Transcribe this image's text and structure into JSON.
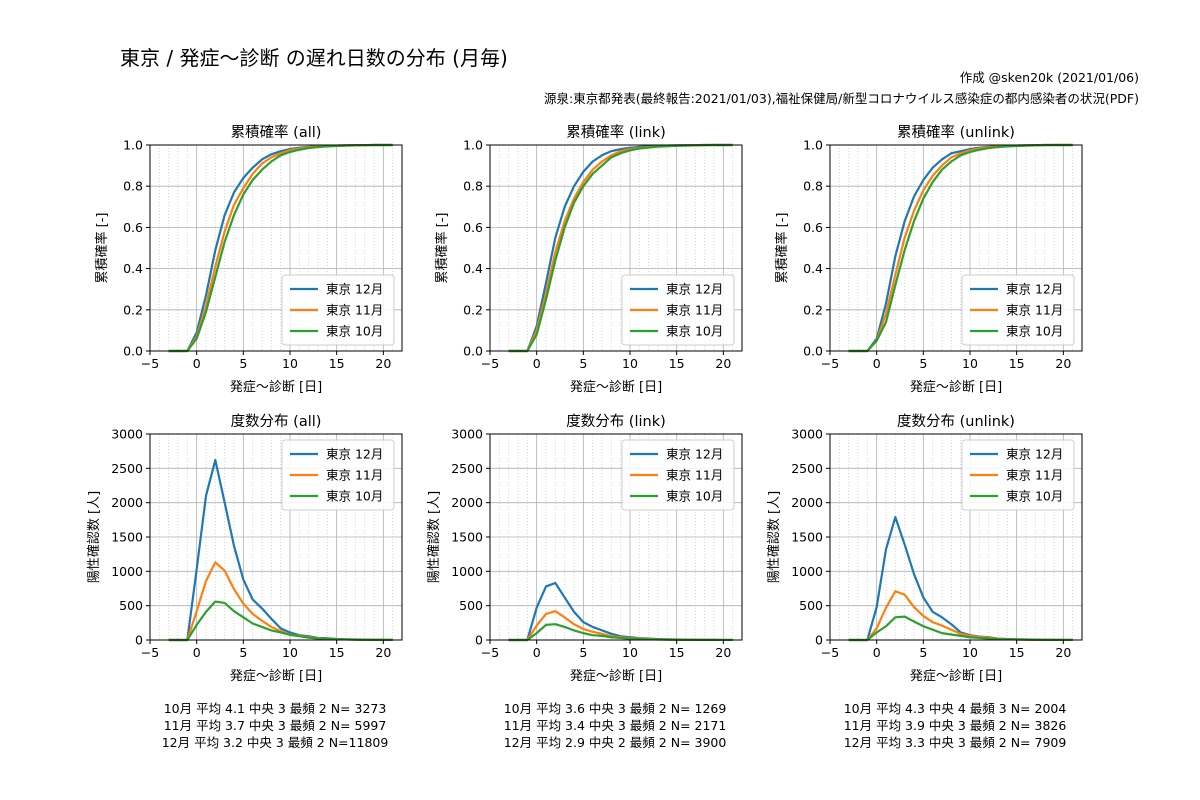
{
  "header": {
    "title": "東京 / 発症～診断 の遅れ日数の分布 (月毎)",
    "credit": "作成 @sken20k (2021/01/06)",
    "source": "源泉:東京都発表(最終報告:2021/01/03),福祉保健局/新型コロナウイルス感染症の都内感染者の状況(PDF)"
  },
  "colors": {
    "12月": "#1f77b4",
    "11月": "#ff7f0e",
    "10月": "#2ca02c",
    "grid": "#b0b0b0"
  },
  "chart_data": [
    {
      "type": "line",
      "title": "累積確率 (all)",
      "xlabel": "発症～診断 [日]",
      "ylabel": "累積確率 [-]",
      "xlim": [
        -5,
        22
      ],
      "ylim": [
        0,
        1.0
      ],
      "xticks": [
        -5,
        0,
        5,
        10,
        15,
        20
      ],
      "yticks": [
        0.0,
        0.2,
        0.4,
        0.6,
        0.8,
        1.0
      ],
      "ytick_labels": [
        "0.0",
        "0.2",
        "0.4",
        "0.6",
        "0.8",
        "1.0"
      ],
      "legend": "lower-right",
      "grid": true,
      "x": [
        -3,
        -2,
        -1,
        0,
        1,
        2,
        3,
        4,
        5,
        6,
        7,
        8,
        9,
        10,
        11,
        12,
        13,
        14,
        15,
        16,
        17,
        18,
        19,
        20,
        21
      ],
      "series": [
        {
          "name": "東京 12月",
          "color": "#1f77b4",
          "values": [
            0,
            0,
            0,
            0.09,
            0.27,
            0.49,
            0.66,
            0.77,
            0.84,
            0.89,
            0.93,
            0.955,
            0.97,
            0.98,
            0.987,
            0.991,
            0.994,
            0.996,
            0.997,
            0.998,
            0.999,
            0.999,
            1,
            1,
            1
          ]
        },
        {
          "name": "東京 11月",
          "color": "#ff7f0e",
          "values": [
            0,
            0,
            0,
            0.07,
            0.22,
            0.41,
            0.58,
            0.71,
            0.79,
            0.86,
            0.91,
            0.94,
            0.96,
            0.975,
            0.983,
            0.989,
            0.993,
            0.995,
            0.997,
            0.998,
            0.999,
            0.999,
            1,
            1,
            1
          ]
        },
        {
          "name": "東京 10月",
          "color": "#2ca02c",
          "values": [
            0,
            0,
            0,
            0.06,
            0.19,
            0.36,
            0.53,
            0.66,
            0.76,
            0.83,
            0.88,
            0.92,
            0.95,
            0.966,
            0.977,
            0.985,
            0.99,
            0.993,
            0.995,
            0.997,
            0.998,
            0.999,
            1,
            1,
            1
          ]
        }
      ]
    },
    {
      "type": "line",
      "title": "累積確率 (link)",
      "xlabel": "発症～診断 [日]",
      "ylabel": "累積確率 [-]",
      "xlim": [
        -5,
        22
      ],
      "ylim": [
        0,
        1.0
      ],
      "xticks": [
        -5,
        0,
        5,
        10,
        15,
        20
      ],
      "yticks": [
        0.0,
        0.2,
        0.4,
        0.6,
        0.8,
        1.0
      ],
      "ytick_labels": [
        "0.0",
        "0.2",
        "0.4",
        "0.6",
        "0.8",
        "1.0"
      ],
      "legend": "lower-right",
      "grid": true,
      "x": [
        -3,
        -2,
        -1,
        0,
        1,
        2,
        3,
        4,
        5,
        6,
        7,
        8,
        9,
        10,
        11,
        12,
        13,
        14,
        15,
        16,
        17,
        18,
        19,
        20,
        21
      ],
      "series": [
        {
          "name": "東京 12月",
          "color": "#1f77b4",
          "values": [
            0,
            0,
            0,
            0.12,
            0.33,
            0.55,
            0.7,
            0.8,
            0.87,
            0.92,
            0.95,
            0.97,
            0.98,
            0.986,
            0.991,
            0.994,
            0.996,
            0.997,
            0.998,
            0.999,
            0.999,
            1,
            1,
            1,
            1
          ]
        },
        {
          "name": "東京 11月",
          "color": "#ff7f0e",
          "values": [
            0,
            0,
            0,
            0.1,
            0.28,
            0.48,
            0.63,
            0.74,
            0.82,
            0.88,
            0.92,
            0.95,
            0.97,
            0.98,
            0.986,
            0.99,
            0.993,
            0.995,
            0.997,
            0.998,
            0.999,
            1,
            1,
            1,
            1
          ]
        },
        {
          "name": "東京 10月",
          "color": "#2ca02c",
          "values": [
            0,
            0,
            0,
            0.08,
            0.25,
            0.44,
            0.6,
            0.72,
            0.8,
            0.86,
            0.9,
            0.94,
            0.96,
            0.974,
            0.983,
            0.988,
            0.992,
            0.994,
            0.996,
            0.997,
            0.998,
            0.999,
            1,
            1,
            1
          ]
        }
      ]
    },
    {
      "type": "line",
      "title": "累積確率 (unlink)",
      "xlabel": "発症～診断 [日]",
      "ylabel": "累積確率 [-]",
      "xlim": [
        -5,
        22
      ],
      "ylim": [
        0,
        1.0
      ],
      "xticks": [
        -5,
        0,
        5,
        10,
        15,
        20
      ],
      "yticks": [
        0.0,
        0.2,
        0.4,
        0.6,
        0.8,
        1.0
      ],
      "ytick_labels": [
        "0.0",
        "0.2",
        "0.4",
        "0.6",
        "0.8",
        "1.0"
      ],
      "legend": "lower-right",
      "grid": true,
      "x": [
        -3,
        -2,
        -1,
        0,
        1,
        2,
        3,
        4,
        5,
        6,
        7,
        8,
        9,
        10,
        11,
        12,
        13,
        14,
        15,
        16,
        17,
        18,
        19,
        20,
        21
      ],
      "series": [
        {
          "name": "東京 12月",
          "color": "#1f77b4",
          "values": [
            0,
            0,
            0,
            0.06,
            0.23,
            0.46,
            0.63,
            0.75,
            0.83,
            0.89,
            0.93,
            0.96,
            0.97,
            0.98,
            0.987,
            0.991,
            0.994,
            0.996,
            0.997,
            0.998,
            0.999,
            1,
            1,
            1,
            1
          ]
        },
        {
          "name": "東京 11月",
          "color": "#ff7f0e",
          "values": [
            0,
            0,
            0,
            0.05,
            0.18,
            0.37,
            0.55,
            0.68,
            0.78,
            0.85,
            0.9,
            0.94,
            0.96,
            0.974,
            0.983,
            0.989,
            0.993,
            0.995,
            0.997,
            0.998,
            0.999,
            1,
            1,
            1,
            1
          ]
        },
        {
          "name": "東京 10月",
          "color": "#2ca02c",
          "values": [
            0,
            0,
            0,
            0.05,
            0.14,
            0.32,
            0.49,
            0.63,
            0.74,
            0.82,
            0.88,
            0.92,
            0.95,
            0.966,
            0.977,
            0.985,
            0.99,
            0.993,
            0.995,
            0.997,
            0.998,
            0.999,
            1,
            1,
            1
          ]
        }
      ]
    },
    {
      "type": "line",
      "title": "度数分布 (all)",
      "xlabel": "発症～診断 [日]",
      "ylabel": "陽性確認数 [人]",
      "xlim": [
        -5,
        22
      ],
      "ylim": [
        0,
        3000
      ],
      "xticks": [
        -5,
        0,
        5,
        10,
        15,
        20
      ],
      "yticks": [
        0,
        500,
        1000,
        1500,
        2000,
        2500,
        3000
      ],
      "ytick_labels": [
        "0",
        "500",
        "1000",
        "1500",
        "2000",
        "2500",
        "3000"
      ],
      "legend": "upper-right",
      "grid": true,
      "x": [
        -3,
        -2,
        -1,
        0,
        1,
        2,
        3,
        4,
        5,
        6,
        7,
        8,
        9,
        10,
        11,
        12,
        13,
        14,
        15,
        16,
        17,
        18,
        19,
        20,
        21
      ],
      "series": [
        {
          "name": "東京 12月",
          "color": "#1f77b4",
          "values": [
            0,
            0,
            0,
            1030,
            2100,
            2620,
            2000,
            1370,
            880,
            590,
            460,
            310,
            170,
            110,
            70,
            55,
            30,
            25,
            15,
            10,
            8,
            5,
            4,
            3,
            2
          ]
        },
        {
          "name": "東京 11月",
          "color": "#ff7f0e",
          "values": [
            0,
            0,
            0,
            420,
            860,
            1130,
            1010,
            740,
            530,
            380,
            280,
            190,
            130,
            80,
            60,
            45,
            25,
            20,
            12,
            8,
            6,
            4,
            3,
            2,
            1
          ]
        },
        {
          "name": "東京 10月",
          "color": "#2ca02c",
          "values": [
            0,
            0,
            0,
            220,
            410,
            560,
            540,
            420,
            330,
            240,
            190,
            140,
            110,
            75,
            55,
            35,
            22,
            18,
            12,
            8,
            6,
            4,
            3,
            2,
            1
          ]
        }
      ]
    },
    {
      "type": "line",
      "title": "度数分布 (link)",
      "xlabel": "発症～診断 [日]",
      "ylabel": "陽性確認数 [人]",
      "xlim": [
        -5,
        22
      ],
      "ylim": [
        0,
        3000
      ],
      "xticks": [
        -5,
        0,
        5,
        10,
        15,
        20
      ],
      "yticks": [
        0,
        500,
        1000,
        1500,
        2000,
        2500,
        3000
      ],
      "ytick_labels": [
        "0",
        "500",
        "1000",
        "1500",
        "2000",
        "2500",
        "3000"
      ],
      "legend": "upper-right",
      "grid": true,
      "x": [
        -3,
        -2,
        -1,
        0,
        1,
        2,
        3,
        4,
        5,
        6,
        7,
        8,
        9,
        10,
        11,
        12,
        13,
        14,
        15,
        16,
        17,
        18,
        19,
        20,
        21
      ],
      "series": [
        {
          "name": "東京 12月",
          "color": "#1f77b4",
          "values": [
            0,
            0,
            0,
            470,
            780,
            830,
            620,
            410,
            260,
            190,
            140,
            90,
            55,
            40,
            28,
            20,
            14,
            10,
            7,
            5,
            4,
            3,
            2,
            1,
            1
          ]
        },
        {
          "name": "東京 11月",
          "color": "#ff7f0e",
          "values": [
            0,
            0,
            0,
            210,
            380,
            420,
            330,
            230,
            160,
            120,
            90,
            55,
            40,
            28,
            20,
            14,
            10,
            7,
            5,
            4,
            3,
            2,
            1,
            1,
            1
          ]
        },
        {
          "name": "東京 10月",
          "color": "#2ca02c",
          "values": [
            0,
            0,
            0,
            100,
            220,
            230,
            190,
            140,
            100,
            70,
            60,
            40,
            30,
            20,
            14,
            10,
            7,
            5,
            4,
            3,
            2,
            1,
            1,
            1,
            1
          ]
        }
      ]
    },
    {
      "type": "line",
      "title": "度数分布 (unlink)",
      "xlabel": "発症～診断 [日]",
      "ylabel": "陽性確認数 [人]",
      "xlim": [
        -5,
        22
      ],
      "ylim": [
        0,
        3000
      ],
      "xticks": [
        -5,
        0,
        5,
        10,
        15,
        20
      ],
      "yticks": [
        0,
        500,
        1000,
        1500,
        2000,
        2500,
        3000
      ],
      "ytick_labels": [
        "0",
        "500",
        "1000",
        "1500",
        "2000",
        "2500",
        "3000"
      ],
      "legend": "upper-right",
      "grid": true,
      "x": [
        -3,
        -2,
        -1,
        0,
        1,
        2,
        3,
        4,
        5,
        6,
        7,
        8,
        9,
        10,
        11,
        12,
        13,
        14,
        15,
        16,
        17,
        18,
        19,
        20,
        21
      ],
      "series": [
        {
          "name": "東京 12月",
          "color": "#1f77b4",
          "values": [
            0,
            0,
            0,
            480,
            1320,
            1790,
            1390,
            960,
            620,
            410,
            330,
            230,
            110,
            70,
            50,
            40,
            20,
            15,
            10,
            8,
            5,
            4,
            3,
            2,
            1
          ]
        },
        {
          "name": "東京 11月",
          "color": "#ff7f0e",
          "values": [
            0,
            0,
            0,
            170,
            470,
            710,
            660,
            480,
            350,
            260,
            210,
            150,
            90,
            60,
            45,
            35,
            18,
            12,
            8,
            6,
            4,
            3,
            2,
            1,
            1
          ]
        },
        {
          "name": "東京 10月",
          "color": "#2ca02c",
          "values": [
            0,
            0,
            0,
            110,
            200,
            330,
            340,
            270,
            200,
            150,
            100,
            80,
            60,
            40,
            30,
            22,
            14,
            10,
            7,
            5,
            4,
            3,
            2,
            1,
            1
          ]
        }
      ]
    }
  ],
  "stats": [
    [
      "10月 平均 4.1 中央 3 最頻 2  N= 3273",
      "11月 平均 3.7 中央 3 最頻 2  N= 5997",
      "12月 平均 3.2 中央 3 最頻 2  N=11809"
    ],
    [
      "10月 平均 3.6 中央 3 最頻 2  N= 1269",
      "11月 平均 3.4 中央 3 最頻 2  N= 2171",
      "12月 平均 2.9 中央 2 最頻 2  N= 3900"
    ],
    [
      "10月 平均 4.3 中央 4 最頻 3  N= 2004",
      "11月 平均 3.9 中央 3 最頻 2  N= 3826",
      "12月 平均 3.3 中央 3 最頻 2  N= 7909"
    ]
  ]
}
